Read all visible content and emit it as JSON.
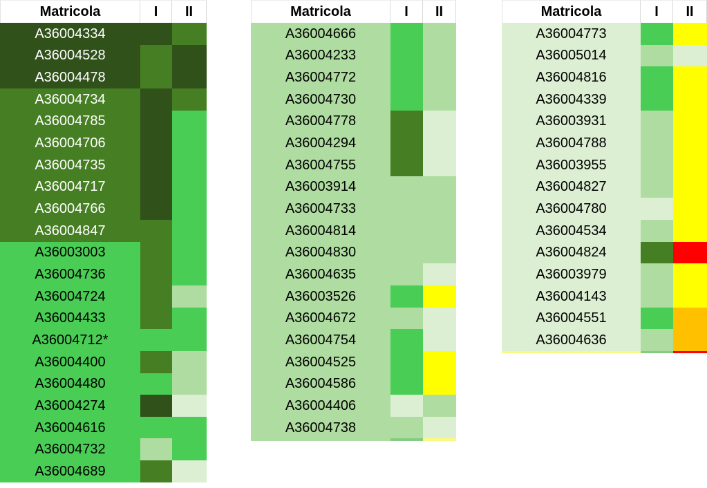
{
  "palette": {
    "dark-green": "#31511B",
    "medium-green": "#467F23",
    "bright-green": "#49CD55",
    "light-green": "#AFDCA0",
    "pale-green": "#DCEFD3",
    "yellow": "#FFFF00",
    "orange": "#FFC000",
    "red": "#FF0000",
    "pale-yellow": "#FAFA82",
    "sliver-green": "#84CC84",
    "header_bg": "#FFFFFF",
    "header_text": "#000000",
    "header_border": "#D9D9D9",
    "text_black": "#000000",
    "text_white": "#FFFFFF"
  },
  "chart_data": {
    "type": "heatmap",
    "title": "",
    "columns": [
      "Matricola",
      "I",
      "II"
    ],
    "legend": null,
    "color_levels_observed": [
      "dark-green",
      "medium-green",
      "bright-green",
      "light-green",
      "pale-green",
      "yellow",
      "orange",
      "red"
    ],
    "tables": [
      {
        "name": "left-table",
        "rows": [
          {
            "id": "A36004334",
            "row": "dark-green",
            "i": "dark-green",
            "ii": "medium-green",
            "text": "white"
          },
          {
            "id": "A36004528",
            "row": "dark-green",
            "i": "medium-green",
            "ii": "dark-green",
            "text": "white"
          },
          {
            "id": "A36004478",
            "row": "dark-green",
            "i": "medium-green",
            "ii": "dark-green",
            "text": "white"
          },
          {
            "id": "A36004734",
            "row": "medium-green",
            "i": "dark-green",
            "ii": "medium-green",
            "text": "white"
          },
          {
            "id": "A36004785",
            "row": "medium-green",
            "i": "dark-green",
            "ii": "bright-green",
            "text": "white"
          },
          {
            "id": "A36004706",
            "row": "medium-green",
            "i": "dark-green",
            "ii": "bright-green",
            "text": "white"
          },
          {
            "id": "A36004735",
            "row": "medium-green",
            "i": "dark-green",
            "ii": "bright-green",
            "text": "white"
          },
          {
            "id": "A36004717",
            "row": "medium-green",
            "i": "dark-green",
            "ii": "bright-green",
            "text": "white"
          },
          {
            "id": "A36004766",
            "row": "medium-green",
            "i": "dark-green",
            "ii": "bright-green",
            "text": "white"
          },
          {
            "id": "A36004847",
            "row": "medium-green",
            "i": "medium-green",
            "ii": "bright-green",
            "text": "white"
          },
          {
            "id": "A36003003",
            "row": "bright-green",
            "i": "medium-green",
            "ii": "bright-green",
            "text": "black"
          },
          {
            "id": "A36004736",
            "row": "bright-green",
            "i": "medium-green",
            "ii": "bright-green",
            "text": "black"
          },
          {
            "id": "A36004724",
            "row": "bright-green",
            "i": "medium-green",
            "ii": "light-green",
            "text": "black"
          },
          {
            "id": "A36004433",
            "row": "bright-green",
            "i": "medium-green",
            "ii": "bright-green",
            "text": "black"
          },
          {
            "id": "A36004712*",
            "row": "bright-green",
            "i": "bright-green",
            "ii": "bright-green",
            "text": "black"
          },
          {
            "id": "A36004400",
            "row": "bright-green",
            "i": "medium-green",
            "ii": "light-green",
            "text": "black"
          },
          {
            "id": "A36004480",
            "row": "bright-green",
            "i": "bright-green",
            "ii": "light-green",
            "text": "black"
          },
          {
            "id": "A36004274",
            "row": "bright-green",
            "i": "dark-green",
            "ii": "pale-green",
            "text": "black"
          },
          {
            "id": "A36004616",
            "row": "bright-green",
            "i": "bright-green",
            "ii": "bright-green",
            "text": "black"
          },
          {
            "id": "A36004732",
            "row": "bright-green",
            "i": "light-green",
            "ii": "bright-green",
            "text": "black"
          },
          {
            "id": "A36004689",
            "row": "bright-green",
            "i": "medium-green",
            "ii": "pale-green",
            "text": "black"
          }
        ],
        "partial_row": null
      },
      {
        "name": "middle-table",
        "rows": [
          {
            "id": "A36004666",
            "row": "light-green",
            "i": "bright-green",
            "ii": "light-green",
            "text": "black"
          },
          {
            "id": "A36004233",
            "row": "light-green",
            "i": "bright-green",
            "ii": "light-green",
            "text": "black"
          },
          {
            "id": "A36004772",
            "row": "light-green",
            "i": "bright-green",
            "ii": "light-green",
            "text": "black"
          },
          {
            "id": "A36004730",
            "row": "light-green",
            "i": "bright-green",
            "ii": "light-green",
            "text": "black"
          },
          {
            "id": "A36004778",
            "row": "light-green",
            "i": "medium-green",
            "ii": "pale-green",
            "text": "black"
          },
          {
            "id": "A36004294",
            "row": "light-green",
            "i": "medium-green",
            "ii": "pale-green",
            "text": "black"
          },
          {
            "id": "A36004755",
            "row": "light-green",
            "i": "medium-green",
            "ii": "pale-green",
            "text": "black"
          },
          {
            "id": "A36003914",
            "row": "light-green",
            "i": "light-green",
            "ii": "light-green",
            "text": "black"
          },
          {
            "id": "A36004733",
            "row": "light-green",
            "i": "light-green",
            "ii": "light-green",
            "text": "black"
          },
          {
            "id": "A36004814",
            "row": "light-green",
            "i": "light-green",
            "ii": "light-green",
            "text": "black"
          },
          {
            "id": "A36004830",
            "row": "light-green",
            "i": "light-green",
            "ii": "light-green",
            "text": "black"
          },
          {
            "id": "A36004635",
            "row": "light-green",
            "i": "light-green",
            "ii": "pale-green",
            "text": "black"
          },
          {
            "id": "A36003526",
            "row": "light-green",
            "i": "bright-green",
            "ii": "yellow",
            "text": "black"
          },
          {
            "id": "A36004672",
            "row": "light-green",
            "i": "light-green",
            "ii": "pale-green",
            "text": "black"
          },
          {
            "id": "A36004754",
            "row": "light-green",
            "i": "bright-green",
            "ii": "pale-green",
            "text": "black"
          },
          {
            "id": "A36004525",
            "row": "light-green",
            "i": "bright-green",
            "ii": "yellow",
            "text": "black"
          },
          {
            "id": "A36004586",
            "row": "light-green",
            "i": "bright-green",
            "ii": "yellow",
            "text": "black"
          },
          {
            "id": "A36004406",
            "row": "light-green",
            "i": "pale-green",
            "ii": "light-green",
            "text": "black"
          },
          {
            "id": "A36004738",
            "row": "light-green",
            "i": "light-green",
            "ii": "pale-green",
            "text": "black"
          }
        ],
        "partial_row": {
          "row": "light-green",
          "i": "sliver-green",
          "ii": "pale-yellow"
        }
      },
      {
        "name": "right-table",
        "rows": [
          {
            "id": "A36004773",
            "row": "pale-green",
            "i": "bright-green",
            "ii": "yellow",
            "text": "black"
          },
          {
            "id": "A36005014",
            "row": "pale-green",
            "i": "light-green",
            "ii": "pale-green",
            "text": "black"
          },
          {
            "id": "A36004816",
            "row": "pale-green",
            "i": "bright-green",
            "ii": "yellow",
            "text": "black"
          },
          {
            "id": "A36004339",
            "row": "pale-green",
            "i": "bright-green",
            "ii": "yellow",
            "text": "black"
          },
          {
            "id": "A36003931",
            "row": "pale-green",
            "i": "light-green",
            "ii": "yellow",
            "text": "black"
          },
          {
            "id": "A36004788",
            "row": "pale-green",
            "i": "light-green",
            "ii": "yellow",
            "text": "black"
          },
          {
            "id": "A36003955",
            "row": "pale-green",
            "i": "light-green",
            "ii": "yellow",
            "text": "black"
          },
          {
            "id": "A36004827",
            "row": "pale-green",
            "i": "light-green",
            "ii": "yellow",
            "text": "black"
          },
          {
            "id": "A36004780",
            "row": "pale-green",
            "i": "pale-green",
            "ii": "yellow",
            "text": "black"
          },
          {
            "id": "A36004534",
            "row": "pale-green",
            "i": "light-green",
            "ii": "yellow",
            "text": "black"
          },
          {
            "id": "A36004824",
            "row": "pale-green",
            "i": "medium-green",
            "ii": "red",
            "text": "black"
          },
          {
            "id": "A36003979",
            "row": "pale-green",
            "i": "light-green",
            "ii": "yellow",
            "text": "black"
          },
          {
            "id": "A36004143",
            "row": "pale-green",
            "i": "light-green",
            "ii": "yellow",
            "text": "black"
          },
          {
            "id": "A36004551",
            "row": "pale-green",
            "i": "bright-green",
            "ii": "orange",
            "text": "black"
          },
          {
            "id": "A36004636",
            "row": "pale-green",
            "i": "light-green",
            "ii": "orange",
            "text": "black"
          }
        ],
        "partial_row": {
          "row": "pale-yellow",
          "i": "sliver-green",
          "ii": "red"
        }
      }
    ]
  }
}
